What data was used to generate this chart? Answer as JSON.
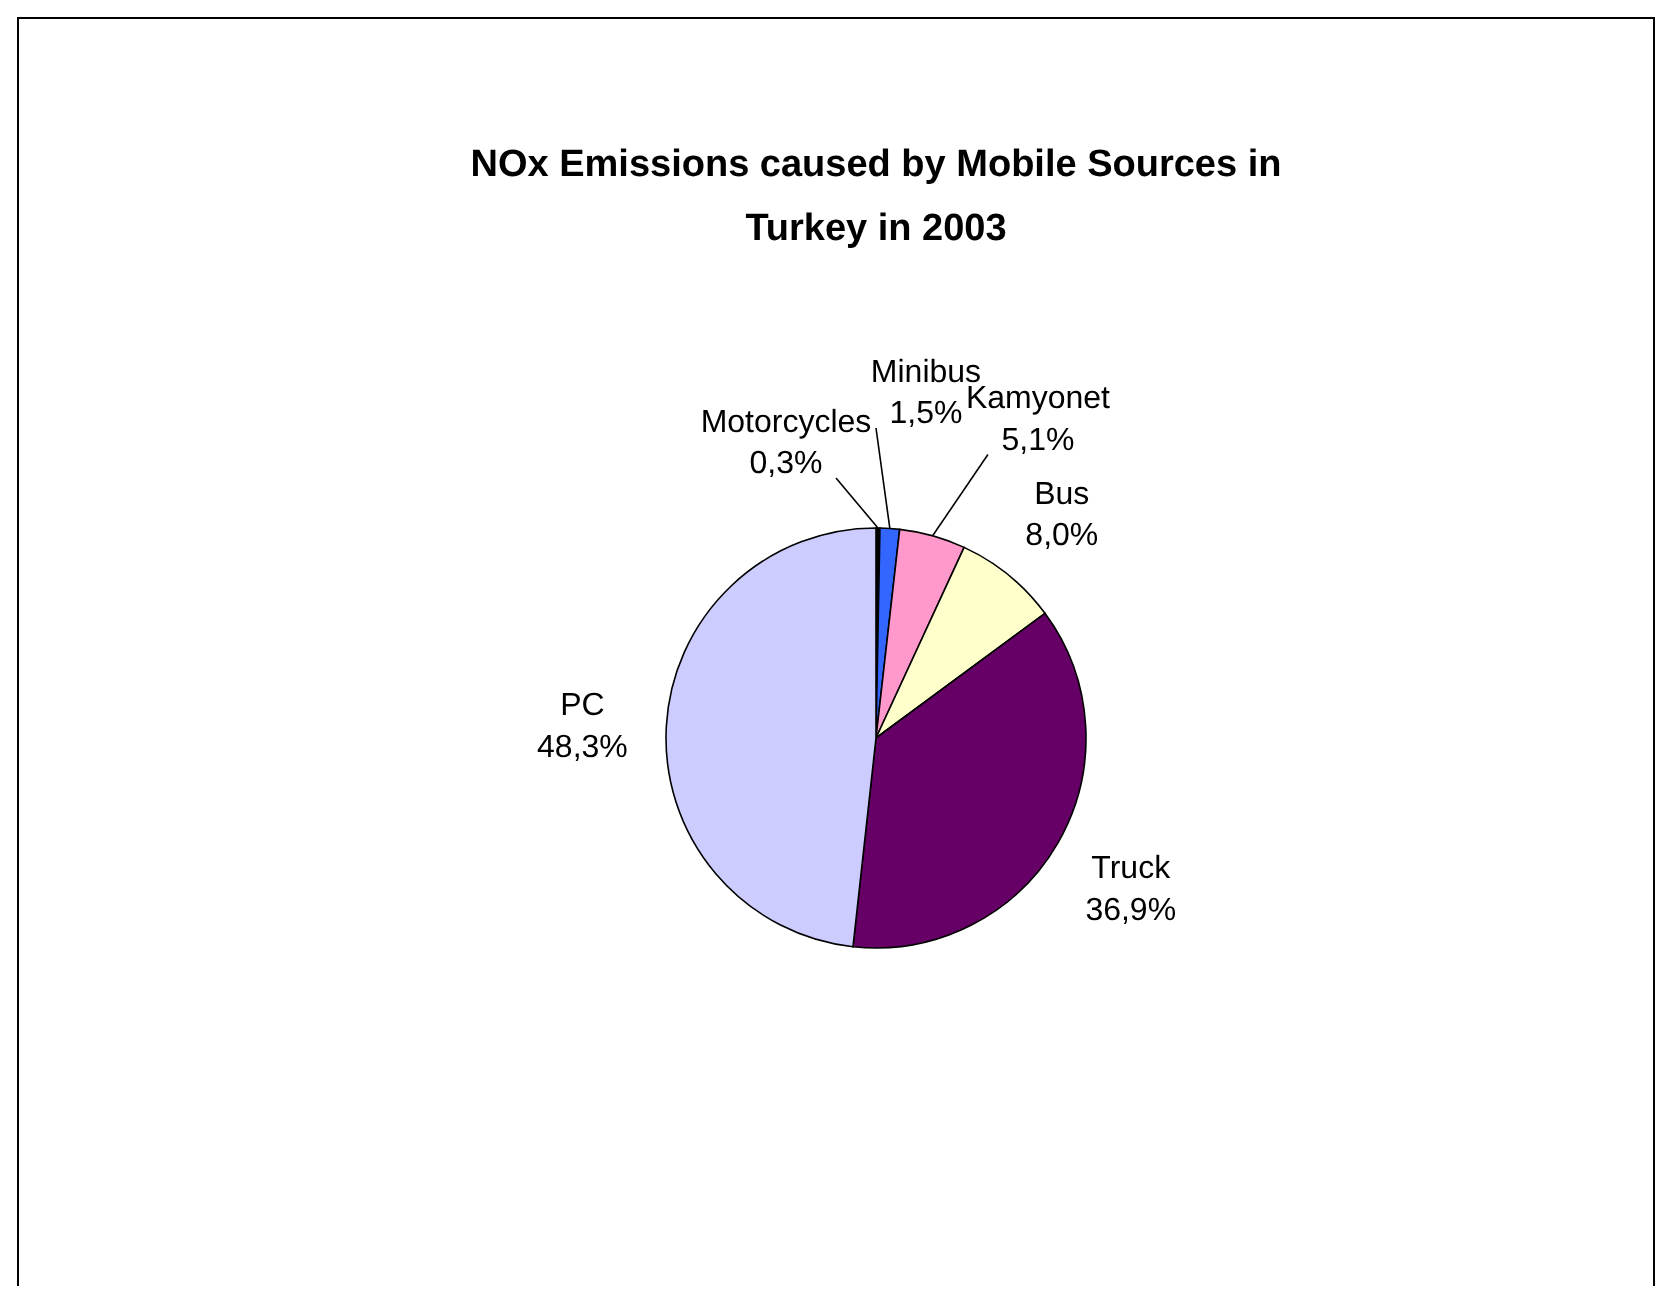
{
  "chart_data": {
    "type": "pie",
    "title": "NOx Emissions caused by Mobile Sources in Turkey in 2003",
    "categories": [
      "Motorcycles",
      "Minibus",
      "Kamyonet",
      "Bus",
      "Truck",
      "PC"
    ],
    "values": [
      0.3,
      1.5,
      5.1,
      8.0,
      36.9,
      48.3
    ],
    "value_labels": [
      "0,3%",
      "1,5%",
      "5,1%",
      "8,0%",
      "36,9%",
      "48,3%"
    ],
    "colors": [
      "#000000",
      "#3366ff",
      "#ff99cc",
      "#ffffcc",
      "#660066",
      "#ccccff"
    ]
  }
}
